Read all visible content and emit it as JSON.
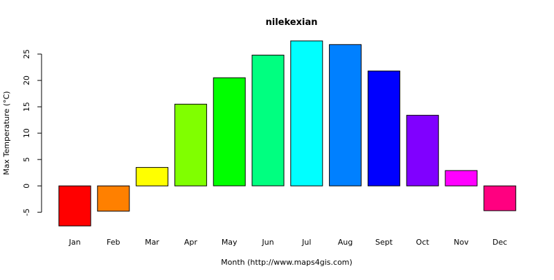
{
  "chart_data": {
    "type": "bar",
    "title": "nilekexian",
    "xlabel": "Month (http://www.maps4gis.com)",
    "ylabel": "Max Temperature (°C)",
    "categories": [
      "Jan",
      "Feb",
      "Mar",
      "Apr",
      "May",
      "Jun",
      "Jul",
      "Aug",
      "Sept",
      "Oct",
      "Nov",
      "Dec"
    ],
    "values": [
      -7.6,
      -4.8,
      3.5,
      15.5,
      20.5,
      24.8,
      27.5,
      26.8,
      21.8,
      13.4,
      2.9,
      -4.7
    ],
    "colors": [
      "#FF0000",
      "#FF8000",
      "#FFFF00",
      "#80FF00",
      "#00FF00",
      "#00FF80",
      "#00FFFF",
      "#0080FF",
      "#0000FF",
      "#8000FF",
      "#FF00FF",
      "#FF0080"
    ],
    "yticks": [
      -5,
      0,
      5,
      10,
      15,
      20,
      25
    ],
    "ylim": [
      -7.6,
      27.5
    ],
    "grid": false,
    "legend": "none"
  }
}
